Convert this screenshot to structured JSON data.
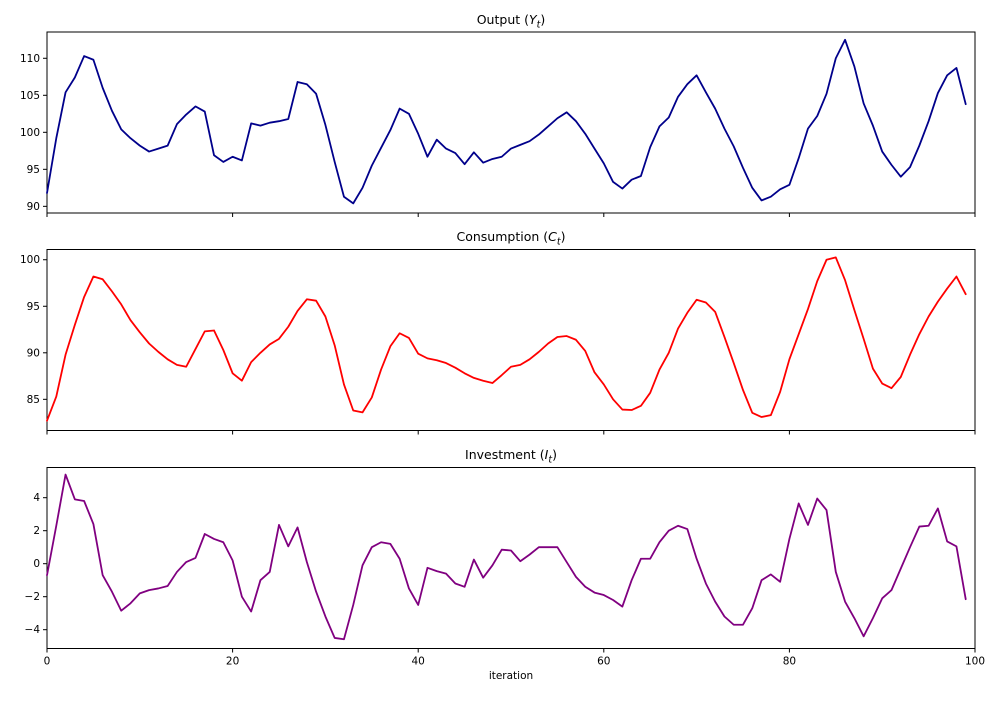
{
  "figure": {
    "background": "#ffffff",
    "axis_color": "#000000",
    "grid": false,
    "legend": false,
    "xlabel": "iteration",
    "xticks": [
      0,
      20,
      40,
      60,
      80,
      100
    ],
    "xtick_labels": [
      "0",
      "20",
      "40",
      "60",
      "80",
      "100"
    ],
    "xlim": [
      0,
      100
    ]
  },
  "chart_data": [
    {
      "name": "output",
      "type": "line",
      "title": "Output (Y_t)",
      "title_prefix": "Output (",
      "title_var": "Y",
      "title_sub": "t",
      "title_suffix": ")",
      "color": "#00008B",
      "xlim": [
        0,
        100
      ],
      "ylim": [
        89.1,
        113.55
      ],
      "yticks": [
        90,
        95,
        100,
        105,
        110
      ],
      "ytick_labels": [
        "90",
        "95",
        "100",
        "105",
        "110"
      ],
      "x_start": 0,
      "values": [
        91.8,
        99.2,
        105.4,
        107.4,
        110.3,
        109.8,
        106.0,
        102.9,
        100.4,
        99.2,
        98.2,
        97.4,
        97.8,
        98.2,
        101.1,
        102.4,
        103.5,
        102.8,
        96.9,
        96.0,
        96.7,
        96.2,
        101.2,
        100.9,
        101.3,
        101.5,
        101.8,
        106.8,
        106.5,
        105.2,
        101.0,
        96.0,
        91.3,
        90.4,
        92.5,
        95.5,
        97.9,
        100.3,
        103.2,
        102.5,
        99.8,
        96.7,
        99.0,
        97.8,
        97.2,
        95.7,
        97.3,
        95.9,
        96.4,
        96.7,
        97.8,
        98.3,
        98.8,
        99.7,
        100.8,
        101.9,
        102.7,
        101.5,
        99.8,
        97.8,
        95.8,
        93.3,
        92.4,
        93.6,
        94.1,
        98.0,
        100.8,
        102.0,
        104.8,
        106.5,
        107.7,
        105.4,
        103.2,
        100.5,
        98.1,
        95.2,
        92.5,
        90.8,
        91.3,
        92.3,
        92.9,
        96.5,
        100.5,
        102.2,
        105.2,
        110.0,
        112.5,
        108.9,
        103.9,
        100.9,
        97.4,
        95.6,
        94.0,
        95.3,
        98.2,
        101.5,
        105.3,
        107.7,
        108.7,
        103.8
      ]
    },
    {
      "name": "consumption",
      "type": "line",
      "title": "Consumption (C_t)",
      "title_prefix": "Consumption (",
      "title_var": "C",
      "title_sub": "t",
      "title_suffix": ")",
      "color": "#FF0000",
      "xlim": [
        0,
        100
      ],
      "ylim": [
        81.65,
        101.1
      ],
      "yticks": [
        85,
        90,
        95,
        100
      ],
      "ytick_labels": [
        "85",
        "90",
        "95",
        "100"
      ],
      "x_start": 0,
      "values": [
        82.7,
        85.3,
        89.8,
        93.0,
        96.0,
        98.2,
        97.9,
        96.6,
        95.2,
        93.5,
        92.2,
        91.0,
        90.1,
        89.3,
        88.7,
        88.5,
        90.4,
        92.3,
        92.4,
        90.3,
        87.8,
        87.0,
        89.0,
        90.0,
        90.9,
        91.5,
        92.8,
        94.5,
        95.75,
        95.6,
        93.9,
        90.8,
        86.6,
        83.8,
        83.6,
        85.2,
        88.2,
        90.7,
        92.1,
        91.6,
        89.9,
        89.4,
        89.2,
        88.9,
        88.4,
        87.8,
        87.3,
        87.0,
        86.75,
        87.6,
        88.5,
        88.7,
        89.3,
        90.1,
        91.0,
        91.7,
        91.8,
        91.4,
        90.2,
        87.9,
        86.6,
        85.0,
        83.9,
        83.85,
        84.3,
        85.7,
        88.2,
        90.0,
        92.6,
        94.3,
        95.7,
        95.4,
        94.4,
        91.7,
        88.9,
        86.0,
        83.55,
        83.1,
        83.3,
        85.8,
        89.3,
        92.0,
        94.7,
        97.7,
        100.0,
        100.25,
        97.8,
        94.6,
        91.5,
        88.3,
        86.7,
        86.2,
        87.4,
        89.8,
        92.0,
        93.9,
        95.5,
        96.9,
        98.2,
        96.3
      ]
    },
    {
      "name": "investment",
      "type": "line",
      "title": "Investment (I_t)",
      "title_prefix": "Investment (",
      "title_var": "I",
      "title_sub": "t",
      "title_suffix": ")",
      "color": "#800080",
      "xlim": [
        0,
        100
      ],
      "ylim": [
        -5.14,
        5.83
      ],
      "yticks": [
        -4,
        -2,
        0,
        2,
        4
      ],
      "ytick_labels": [
        "−4",
        "−2",
        "0",
        "2",
        "4"
      ],
      "x_start": 0,
      "values": [
        -0.7,
        2.3,
        5.4,
        3.9,
        3.8,
        2.4,
        -0.7,
        -1.7,
        -2.85,
        -2.4,
        -1.8,
        -1.6,
        -1.5,
        -1.35,
        -0.5,
        0.1,
        0.35,
        1.8,
        1.5,
        1.3,
        0.2,
        -2.0,
        -2.9,
        -1.0,
        -0.5,
        2.35,
        1.05,
        2.2,
        0.1,
        -1.7,
        -3.2,
        -4.5,
        -4.58,
        -2.5,
        -0.1,
        1.0,
        1.3,
        1.2,
        0.3,
        -1.5,
        -2.5,
        -0.25,
        -0.45,
        -0.6,
        -1.2,
        -1.4,
        0.25,
        -0.85,
        -0.1,
        0.85,
        0.8,
        0.15,
        0.55,
        1.0,
        1.0,
        1.0,
        0.1,
        -0.8,
        -1.4,
        -1.75,
        -1.9,
        -2.2,
        -2.6,
        -1.0,
        0.3,
        0.3,
        1.3,
        2.0,
        2.3,
        2.1,
        0.3,
        -1.2,
        -2.3,
        -3.2,
        -3.7,
        -3.7,
        -2.7,
        -1.0,
        -0.65,
        -1.1,
        1.5,
        3.65,
        2.35,
        3.95,
        3.25,
        -0.5,
        -2.3,
        -3.3,
        -4.4,
        -3.3,
        -2.1,
        -1.6,
        -0.3,
        1.0,
        2.25,
        2.3,
        3.35,
        1.35,
        1.05,
        -2.15
      ]
    }
  ]
}
